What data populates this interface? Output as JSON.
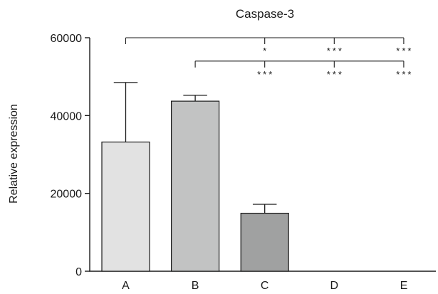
{
  "chart_data": {
    "type": "bar",
    "title": "Caspase-3",
    "xlabel": "",
    "ylabel": "Relative expression",
    "ylim": [
      0,
      60000
    ],
    "yticks": [
      0,
      20000,
      40000,
      60000
    ],
    "ytick_labels": [
      "0",
      "20000",
      "40000",
      "60000"
    ],
    "categories": [
      "A",
      "B",
      "C",
      "D",
      "E"
    ],
    "values": [
      33200,
      43700,
      14900,
      0,
      0
    ],
    "errors": [
      15300,
      1500,
      2300,
      0,
      0
    ],
    "bar_colors": [
      "#e2e2e2",
      "#c2c3c3",
      "#a0a1a1",
      "#a0a1a1",
      "#a0a1a1"
    ],
    "grid": false,
    "legend": "none",
    "significance": [
      {
        "from": "A",
        "to": "E",
        "y": 60000,
        "marks": [
          {
            "at": "C",
            "label": "*"
          },
          {
            "at": "D",
            "label": "***"
          },
          {
            "at": "E",
            "label": "***"
          }
        ]
      },
      {
        "from": "B",
        "to": "E",
        "y": 54000,
        "marks": [
          {
            "at": "C",
            "label": "***"
          },
          {
            "at": "D",
            "label": "***"
          },
          {
            "at": "E",
            "label": "***"
          }
        ]
      }
    ]
  }
}
